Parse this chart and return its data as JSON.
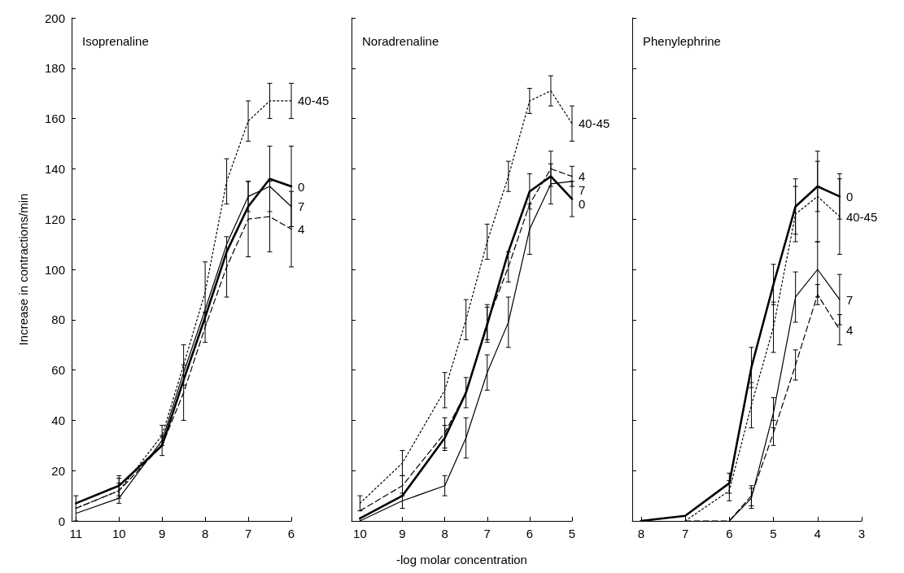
{
  "chart_data": [
    {
      "type": "line",
      "title": "Isoprenaline",
      "ylabel": "Increase in contractions/min",
      "xlim": [
        11.1,
        6
      ],
      "xticks": [
        11,
        10,
        9,
        8,
        7,
        6
      ],
      "ylim": [
        0,
        200
      ],
      "yticks": [
        0,
        20,
        40,
        60,
        80,
        100,
        120,
        140,
        160,
        180,
        200
      ],
      "marker": "none",
      "legend": false,
      "series": [
        {
          "name": "0",
          "color": "#000000",
          "line_style": "solid",
          "x": [
            11,
            10,
            9,
            8.5,
            8,
            7.5,
            7,
            6.5,
            6
          ],
          "values": [
            7,
            14,
            30,
            56,
            81,
            107,
            125,
            136,
            133
          ],
          "errors": [
            null,
            4,
            null,
            null,
            null,
            null,
            null,
            13,
            16
          ]
        },
        {
          "name": "7",
          "color": "#000000",
          "line_style": "solid",
          "x": [
            11,
            10,
            9,
            8.5,
            8,
            7.5,
            7,
            6.5,
            6
          ],
          "values": [
            3,
            9,
            32,
            59,
            84,
            110,
            129,
            133,
            125
          ],
          "errors": [
            null,
            null,
            null,
            null,
            null,
            null,
            6,
            null,
            null
          ]
        },
        {
          "name": "4",
          "color": "#000000",
          "line_style": "dashed",
          "x": [
            11,
            10,
            9,
            8.5,
            8,
            7.5,
            7,
            6.5,
            6
          ],
          "values": [
            5,
            12,
            30,
            51,
            77,
            101,
            120,
            121,
            116
          ],
          "errors": [
            null,
            3,
            4,
            11,
            6,
            12,
            15,
            14,
            15
          ]
        },
        {
          "name": "40-45",
          "color": "#000000",
          "line_style": "dotted",
          "x": [
            11,
            10,
            9,
            8.5,
            8,
            7.5,
            7,
            6.5,
            6
          ],
          "values": [
            5,
            12,
            34,
            62,
            91,
            135,
            159,
            167,
            167
          ],
          "errors": [
            5,
            5,
            4,
            8,
            12,
            9,
            8,
            7,
            7
          ]
        }
      ]
    },
    {
      "type": "line",
      "title": "Noradrenaline",
      "xlabel": "-log molar concentration",
      "xlim": [
        10.2,
        5
      ],
      "xticks": [
        10,
        9,
        8,
        7,
        6,
        5
      ],
      "ylim": [
        0,
        200
      ],
      "yticks": [
        0,
        20,
        40,
        60,
        80,
        100,
        120,
        140,
        160,
        180,
        200
      ],
      "tick_labels": "x",
      "marker": "none",
      "legend": false,
      "series": [
        {
          "name": "0",
          "color": "#000000",
          "line_style": "solid",
          "x": [
            10,
            9,
            8,
            7.5,
            7,
            6.5,
            6,
            5.5,
            5
          ],
          "values": [
            1,
            10,
            33,
            51,
            78,
            107,
            131,
            137,
            128
          ],
          "errors": [
            null,
            null,
            5,
            null,
            7,
            null,
            7,
            null,
            7
          ]
        },
        {
          "name": "7",
          "color": "#000000",
          "line_style": "solid",
          "x": [
            10,
            9,
            8,
            7.5,
            7,
            6.5,
            6,
            5.5,
            5
          ],
          "values": [
            0,
            8,
            14,
            33,
            59,
            79,
            116,
            134,
            135
          ],
          "errors": [
            null,
            3,
            4,
            8,
            7,
            10,
            10,
            8,
            null
          ]
        },
        {
          "name": "4",
          "color": "#000000",
          "line_style": "dashed",
          "x": [
            10,
            9,
            8,
            7.5,
            7,
            6.5,
            6,
            5.5,
            5
          ],
          "values": [
            4,
            14,
            35,
            51,
            79,
            101,
            126,
            140,
            137
          ],
          "errors": [
            null,
            4,
            6,
            6,
            7,
            6,
            null,
            7,
            4
          ]
        },
        {
          "name": "40-45",
          "color": "#000000",
          "line_style": "dotted",
          "x": [
            10,
            9,
            8,
            7.5,
            7,
            6.5,
            6,
            5.5,
            5
          ],
          "values": [
            7,
            23,
            52,
            80,
            111,
            137,
            167,
            171,
            158
          ],
          "errors": [
            3,
            5,
            7,
            8,
            7,
            6,
            5,
            6,
            7
          ]
        }
      ]
    },
    {
      "type": "line",
      "title": "Phenylephrine",
      "xlim": [
        8.2,
        3
      ],
      "xticks": [
        8,
        7,
        6,
        5,
        4,
        3
      ],
      "ylim": [
        0,
        200
      ],
      "yticks": [
        0,
        20,
        40,
        60,
        80,
        100,
        120,
        140,
        160,
        180,
        200
      ],
      "tick_labels": "x",
      "marker": "none",
      "legend": false,
      "series": [
        {
          "name": "0",
          "color": "#000000",
          "line_style": "solid",
          "x": [
            8,
            7,
            6,
            5.5,
            5,
            4.5,
            4,
            3.5
          ],
          "values": [
            0,
            2,
            15,
            61,
            94,
            125,
            133,
            129
          ],
          "errors": [
            null,
            null,
            4,
            8,
            8,
            11,
            10,
            9
          ]
        },
        {
          "name": "7",
          "color": "#000000",
          "line_style": "solid",
          "x": [
            6,
            5.5,
            5,
            4.5,
            4,
            3.5
          ],
          "values": [
            0,
            9,
            43,
            89,
            100,
            88
          ],
          "errors": [
            null,
            4,
            6,
            10,
            11,
            10
          ]
        },
        {
          "name": "4",
          "color": "#000000",
          "line_style": "dashed",
          "x": [
            7,
            6,
            5.5,
            5,
            4.5,
            4,
            3.5
          ],
          "values": [
            0,
            0,
            10,
            35,
            62,
            90,
            76
          ],
          "errors": [
            null,
            null,
            4,
            5,
            6,
            4,
            6
          ]
        },
        {
          "name": "40-45",
          "color": "#000000",
          "line_style": "dotted",
          "x": [
            7,
            6,
            5.5,
            5,
            4.5,
            4,
            3.5
          ],
          "values": [
            0,
            12,
            46,
            77,
            122,
            129,
            121
          ],
          "errors": [
            null,
            4,
            9,
            10,
            11,
            18,
            15
          ]
        }
      ]
    }
  ]
}
